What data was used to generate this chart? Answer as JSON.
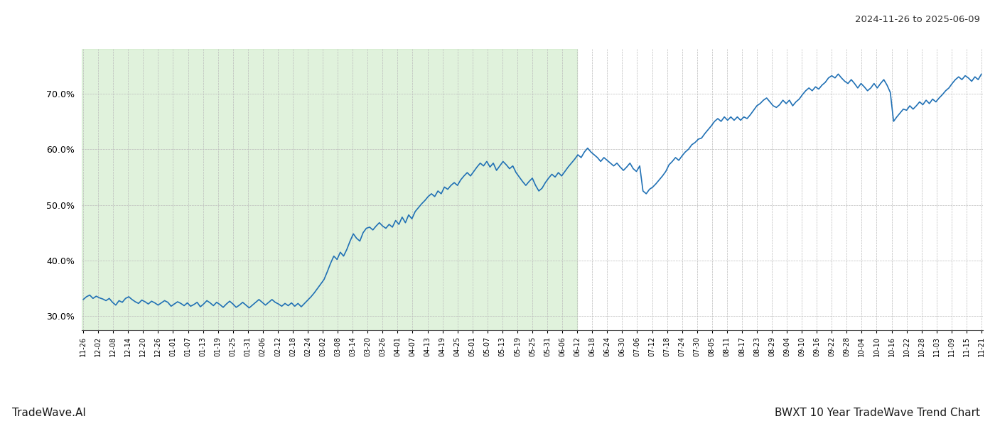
{
  "title_right": "2024-11-26 to 2025-06-09",
  "footer_left": "TradeWave.AI",
  "footer_right": "BWXT 10 Year TradeWave Trend Chart",
  "line_color": "#2171b5",
  "shaded_region_color": "#c7e9c0",
  "shaded_alpha": 0.55,
  "background_color": "#ffffff",
  "grid_color": "#bbbbbb",
  "ylim": [
    27.5,
    78.0
  ],
  "yticks": [
    30.0,
    40.0,
    50.0,
    60.0,
    70.0
  ],
  "x_labels": [
    "11-26",
    "12-02",
    "12-08",
    "12-14",
    "12-20",
    "12-26",
    "01-01",
    "01-07",
    "01-13",
    "01-19",
    "01-25",
    "01-31",
    "02-06",
    "02-12",
    "02-18",
    "02-24",
    "03-02",
    "03-08",
    "03-14",
    "03-20",
    "03-26",
    "04-01",
    "04-07",
    "04-13",
    "04-19",
    "04-25",
    "05-01",
    "05-07",
    "05-13",
    "05-19",
    "05-25",
    "05-31",
    "06-06",
    "06-12",
    "06-18",
    "06-24",
    "06-30",
    "07-06",
    "07-12",
    "07-18",
    "07-24",
    "07-30",
    "08-05",
    "08-11",
    "08-17",
    "08-23",
    "08-29",
    "09-04",
    "09-10",
    "09-16",
    "09-22",
    "09-28",
    "10-04",
    "10-10",
    "10-16",
    "10-22",
    "10-28",
    "11-03",
    "11-09",
    "11-15",
    "11-21"
  ],
  "shade_label_end": "06-12",
  "values": [
    33.0,
    33.5,
    33.8,
    33.2,
    33.6,
    33.3,
    33.1,
    32.8,
    33.2,
    32.5,
    32.0,
    32.8,
    32.5,
    33.2,
    33.5,
    33.0,
    32.6,
    32.3,
    32.9,
    32.6,
    32.2,
    32.7,
    32.4,
    32.0,
    32.4,
    32.8,
    32.5,
    31.8,
    32.2,
    32.6,
    32.3,
    31.9,
    32.4,
    31.8,
    32.1,
    32.5,
    31.7,
    32.2,
    32.8,
    32.4,
    31.9,
    32.5,
    32.1,
    31.6,
    32.2,
    32.7,
    32.2,
    31.6,
    32.0,
    32.5,
    32.0,
    31.5,
    32.0,
    32.5,
    33.0,
    32.5,
    32.0,
    32.5,
    33.0,
    32.5,
    32.2,
    31.8,
    32.3,
    31.9,
    32.4,
    31.8,
    32.3,
    31.7,
    32.3,
    32.9,
    33.5,
    34.2,
    35.0,
    35.8,
    36.6,
    38.0,
    39.5,
    40.8,
    40.2,
    41.5,
    40.8,
    42.0,
    43.5,
    44.8,
    44.0,
    43.5,
    45.0,
    45.8,
    46.0,
    45.5,
    46.2,
    46.8,
    46.2,
    45.8,
    46.5,
    46.0,
    47.2,
    46.5,
    47.8,
    46.8,
    48.2,
    47.5,
    48.8,
    49.5,
    50.2,
    50.8,
    51.5,
    52.0,
    51.5,
    52.5,
    52.0,
    53.2,
    52.8,
    53.5,
    54.0,
    53.5,
    54.5,
    55.2,
    55.8,
    55.2,
    56.0,
    56.8,
    57.5,
    57.0,
    57.8,
    56.8,
    57.5,
    56.2,
    57.0,
    57.8,
    57.2,
    56.5,
    57.0,
    55.8,
    55.0,
    54.2,
    53.5,
    54.2,
    54.8,
    53.5,
    52.5,
    53.0,
    54.0,
    54.8,
    55.5,
    55.0,
    55.8,
    55.2,
    56.0,
    56.8,
    57.5,
    58.2,
    59.0,
    58.5,
    59.5,
    60.2,
    59.5,
    59.0,
    58.5,
    57.8,
    58.5,
    58.0,
    57.5,
    57.0,
    57.5,
    56.8,
    56.2,
    56.8,
    57.5,
    56.5,
    56.0,
    57.0,
    52.5,
    52.0,
    52.8,
    53.2,
    53.8,
    54.5,
    55.2,
    56.0,
    57.2,
    57.8,
    58.5,
    58.0,
    58.8,
    59.5,
    60.0,
    60.8,
    61.2,
    61.8,
    62.0,
    62.8,
    63.5,
    64.2,
    65.0,
    65.5,
    65.0,
    65.8,
    65.2,
    65.8,
    65.2,
    65.8,
    65.2,
    65.8,
    65.5,
    66.2,
    67.0,
    67.8,
    68.2,
    68.8,
    69.2,
    68.5,
    67.8,
    67.5,
    68.0,
    68.8,
    68.2,
    68.8,
    67.8,
    68.5,
    69.0,
    69.8,
    70.5,
    71.0,
    70.5,
    71.2,
    70.8,
    71.5,
    72.0,
    72.8,
    73.2,
    72.8,
    73.5,
    72.8,
    72.2,
    71.8,
    72.5,
    71.8,
    71.0,
    71.8,
    71.2,
    70.5,
    71.0,
    71.8,
    71.0,
    71.8,
    72.5,
    71.5,
    70.2,
    65.0,
    65.8,
    66.5,
    67.2,
    67.0,
    67.8,
    67.2,
    67.8,
    68.5,
    68.0,
    68.8,
    68.2,
    69.0,
    68.5,
    69.2,
    69.8,
    70.5,
    71.0,
    71.8,
    72.5,
    73.0,
    72.5,
    73.2,
    72.8,
    72.2,
    73.0,
    72.5,
    73.5
  ]
}
